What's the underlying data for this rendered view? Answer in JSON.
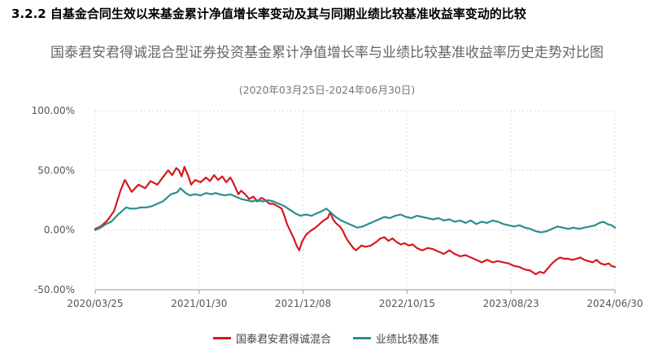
{
  "section_heading": "3.2.2 自基金合同生效以来基金累计净值增长率变动及其与同期业绩比较基准收益率变动的比较",
  "chart_data": {
    "type": "line",
    "title": "国泰君安君得诚混合型证券投资基金累计净值增长率与业绩比较基准收益率历史走势对比图",
    "subtitle": "(2020年03月25日-2024年06月30日)",
    "xlabel": "",
    "ylabel": "",
    "x_ticks": [
      "2020/03/25",
      "2021/01/30",
      "2021/12/08",
      "2022/10/15",
      "2023/08/23",
      "2024/06/30"
    ],
    "y_ticks": [
      "100.00%",
      "50.00%",
      "0.00%",
      "-50.00%"
    ],
    "ylim": [
      -50,
      100
    ],
    "grid": true,
    "legend_position": "bottom-center",
    "x_domain_days": [
      0,
      1923
    ],
    "series": [
      {
        "name": "国泰君安君得诚混合",
        "color": "#d7191c",
        "points": [
          [
            0,
            1
          ],
          [
            20,
            3
          ],
          [
            45,
            8
          ],
          [
            70,
            16
          ],
          [
            95,
            34
          ],
          [
            110,
            42
          ],
          [
            120,
            38
          ],
          [
            135,
            32
          ],
          [
            160,
            38
          ],
          [
            185,
            35
          ],
          [
            205,
            41
          ],
          [
            230,
            38
          ],
          [
            250,
            44
          ],
          [
            270,
            50
          ],
          [
            285,
            46
          ],
          [
            300,
            52
          ],
          [
            310,
            50
          ],
          [
            320,
            45
          ],
          [
            330,
            53
          ],
          [
            345,
            45
          ],
          [
            355,
            38
          ],
          [
            370,
            42
          ],
          [
            390,
            40
          ],
          [
            410,
            44
          ],
          [
            425,
            41
          ],
          [
            440,
            46
          ],
          [
            455,
            42
          ],
          [
            470,
            45
          ],
          [
            485,
            40
          ],
          [
            500,
            44
          ],
          [
            510,
            40
          ],
          [
            520,
            35
          ],
          [
            530,
            30
          ],
          [
            540,
            33
          ],
          [
            555,
            30
          ],
          [
            570,
            26
          ],
          [
            585,
            28
          ],
          [
            600,
            24
          ],
          [
            615,
            27
          ],
          [
            630,
            25
          ],
          [
            645,
            22
          ],
          [
            660,
            22
          ],
          [
            675,
            20
          ],
          [
            690,
            18
          ],
          [
            700,
            12
          ],
          [
            710,
            5
          ],
          [
            720,
            0
          ],
          [
            735,
            -7
          ],
          [
            745,
            -13
          ],
          [
            755,
            -17
          ],
          [
            765,
            -10
          ],
          [
            780,
            -4
          ],
          [
            795,
            -1
          ],
          [
            815,
            2
          ],
          [
            830,
            5
          ],
          [
            845,
            8
          ],
          [
            860,
            10
          ],
          [
            870,
            15
          ],
          [
            880,
            9
          ],
          [
            890,
            6
          ],
          [
            905,
            3
          ],
          [
            915,
            0
          ],
          [
            925,
            -5
          ],
          [
            935,
            -9
          ],
          [
            945,
            -12
          ],
          [
            955,
            -15
          ],
          [
            965,
            -17
          ],
          [
            975,
            -15
          ],
          [
            985,
            -13
          ],
          [
            1000,
            -14
          ],
          [
            1020,
            -13
          ],
          [
            1040,
            -10
          ],
          [
            1055,
            -7
          ],
          [
            1070,
            -6
          ],
          [
            1085,
            -9
          ],
          [
            1100,
            -7
          ],
          [
            1115,
            -10
          ],
          [
            1130,
            -12
          ],
          [
            1145,
            -11
          ],
          [
            1160,
            -13
          ],
          [
            1175,
            -12
          ],
          [
            1190,
            -15
          ],
          [
            1210,
            -17
          ],
          [
            1230,
            -15
          ],
          [
            1250,
            -16
          ],
          [
            1270,
            -18
          ],
          [
            1290,
            -20
          ],
          [
            1310,
            -17
          ],
          [
            1330,
            -20
          ],
          [
            1350,
            -22
          ],
          [
            1370,
            -21
          ],
          [
            1390,
            -23
          ],
          [
            1410,
            -25
          ],
          [
            1430,
            -27
          ],
          [
            1450,
            -25
          ],
          [
            1470,
            -27
          ],
          [
            1490,
            -26
          ],
          [
            1510,
            -27
          ],
          [
            1530,
            -28
          ],
          [
            1550,
            -30
          ],
          [
            1570,
            -31
          ],
          [
            1590,
            -33
          ],
          [
            1610,
            -34
          ],
          [
            1630,
            -37
          ],
          [
            1645,
            -35
          ],
          [
            1660,
            -36
          ],
          [
            1675,
            -32
          ],
          [
            1690,
            -28
          ],
          [
            1705,
            -25
          ],
          [
            1720,
            -23
          ],
          [
            1735,
            -24
          ],
          [
            1750,
            -24
          ],
          [
            1765,
            -25
          ],
          [
            1780,
            -24
          ],
          [
            1795,
            -23
          ],
          [
            1810,
            -25
          ],
          [
            1825,
            -26
          ],
          [
            1840,
            -27
          ],
          [
            1855,
            -25
          ],
          [
            1870,
            -28
          ],
          [
            1885,
            -29
          ],
          [
            1900,
            -28
          ],
          [
            1910,
            -30
          ],
          [
            1923,
            -31
          ]
        ]
      },
      {
        "name": "业绩比较基准",
        "color": "#2a8f8c",
        "points": [
          [
            0,
            0
          ],
          [
            20,
            2
          ],
          [
            40,
            5
          ],
          [
            60,
            7
          ],
          [
            80,
            12
          ],
          [
            100,
            16
          ],
          [
            115,
            19
          ],
          [
            130,
            18
          ],
          [
            150,
            18
          ],
          [
            170,
            19
          ],
          [
            190,
            19
          ],
          [
            210,
            20
          ],
          [
            230,
            22
          ],
          [
            250,
            24
          ],
          [
            265,
            27
          ],
          [
            280,
            30
          ],
          [
            295,
            31
          ],
          [
            305,
            32
          ],
          [
            315,
            35
          ],
          [
            325,
            33
          ],
          [
            335,
            31
          ],
          [
            350,
            29
          ],
          [
            370,
            30
          ],
          [
            390,
            29
          ],
          [
            410,
            31
          ],
          [
            430,
            30
          ],
          [
            445,
            31
          ],
          [
            460,
            30
          ],
          [
            480,
            29
          ],
          [
            500,
            30
          ],
          [
            520,
            28
          ],
          [
            540,
            26
          ],
          [
            560,
            25
          ],
          [
            580,
            24
          ],
          [
            600,
            25
          ],
          [
            620,
            24
          ],
          [
            640,
            25
          ],
          [
            660,
            24
          ],
          [
            680,
            22
          ],
          [
            700,
            20
          ],
          [
            720,
            17
          ],
          [
            740,
            14
          ],
          [
            760,
            12
          ],
          [
            780,
            13
          ],
          [
            800,
            12
          ],
          [
            820,
            14
          ],
          [
            840,
            16
          ],
          [
            855,
            18
          ],
          [
            870,
            15
          ],
          [
            890,
            11
          ],
          [
            910,
            8
          ],
          [
            930,
            6
          ],
          [
            950,
            4
          ],
          [
            970,
            2
          ],
          [
            990,
            3
          ],
          [
            1010,
            5
          ],
          [
            1030,
            7
          ],
          [
            1050,
            9
          ],
          [
            1070,
            11
          ],
          [
            1090,
            10
          ],
          [
            1110,
            12
          ],
          [
            1130,
            13
          ],
          [
            1150,
            11
          ],
          [
            1170,
            10
          ],
          [
            1190,
            12
          ],
          [
            1210,
            11
          ],
          [
            1230,
            10
          ],
          [
            1250,
            9
          ],
          [
            1270,
            10
          ],
          [
            1290,
            8
          ],
          [
            1310,
            9
          ],
          [
            1330,
            7
          ],
          [
            1350,
            8
          ],
          [
            1370,
            6
          ],
          [
            1390,
            8
          ],
          [
            1410,
            5
          ],
          [
            1430,
            7
          ],
          [
            1450,
            6
          ],
          [
            1470,
            8
          ],
          [
            1490,
            7
          ],
          [
            1510,
            5
          ],
          [
            1530,
            4
          ],
          [
            1550,
            3
          ],
          [
            1570,
            4
          ],
          [
            1590,
            2
          ],
          [
            1610,
            1
          ],
          [
            1630,
            -1
          ],
          [
            1650,
            -2
          ],
          [
            1670,
            -1
          ],
          [
            1690,
            1
          ],
          [
            1710,
            3
          ],
          [
            1730,
            2
          ],
          [
            1750,
            1
          ],
          [
            1770,
            2
          ],
          [
            1790,
            1
          ],
          [
            1810,
            2
          ],
          [
            1830,
            3
          ],
          [
            1850,
            4
          ],
          [
            1865,
            6
          ],
          [
            1880,
            7
          ],
          [
            1895,
            5
          ],
          [
            1910,
            4
          ],
          [
            1923,
            2
          ]
        ]
      }
    ]
  }
}
